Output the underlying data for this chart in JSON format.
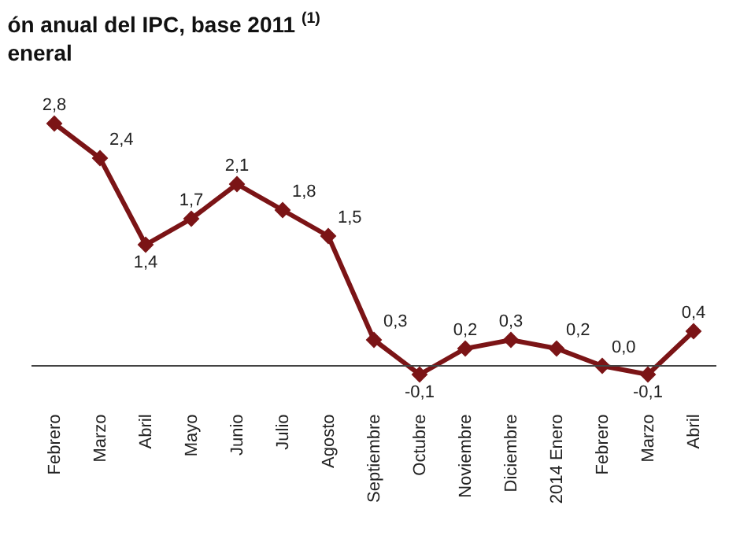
{
  "chart_data": {
    "type": "line",
    "title": "ón anual del IPC, base 2011 $^{(1)}$",
    "subtitle": "eneral",
    "categories": [
      "Febrero",
      "Marzo",
      "Abril",
      "Mayo",
      "Junio",
      "Julio",
      "Agosto",
      "Septiembre",
      "Octubre",
      "Noviembre",
      "Diciembre",
      "2014 Enero",
      "Febrero",
      "Marzo",
      "Abril"
    ],
    "series": [
      {
        "color": "#7b1416",
        "values": [
          2.8,
          2.4,
          1.4,
          1.7,
          2.1,
          1.8,
          1.5,
          0.3,
          -0.1,
          0.2,
          0.3,
          0.2,
          0.0,
          -0.1,
          0.4
        ],
        "value_labels": [
          "2,8",
          "2,4",
          "1,4",
          "1,7",
          "2,1",
          "1,8",
          "1,5",
          "0,3",
          "-0,1",
          "0,2",
          "0,3",
          "0,2",
          "0,0",
          "-0,1",
          "0,4"
        ]
      }
    ],
    "marker": "diamond",
    "legend": false
  }
}
